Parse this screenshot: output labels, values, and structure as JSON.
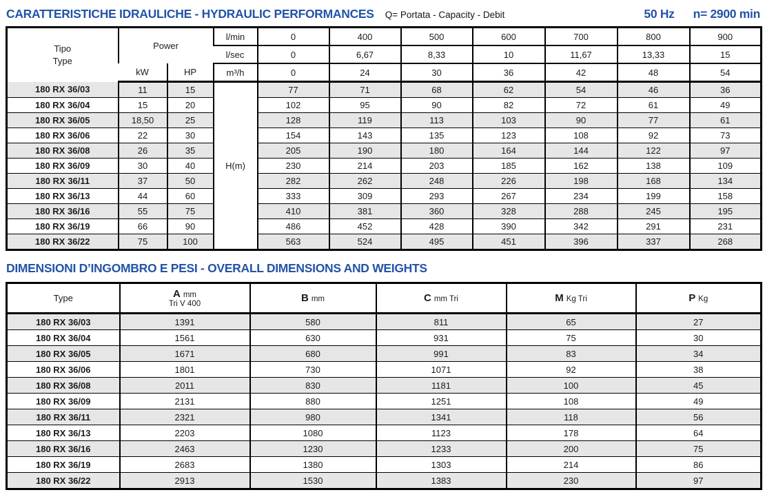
{
  "header": {
    "title": "CARATTERISTICHE IDRAULICHE - HYDRAULIC PERFORMANCES",
    "flow_note": "Q= Portata - Capacity - Debit",
    "frequency": "50 Hz",
    "speed": "n= 2900 min"
  },
  "hydraulic_table": {
    "col_tipo": "Tipo",
    "col_type": "Type",
    "col_power": "Power",
    "col_kw": "kW",
    "col_hp": "HP",
    "head_unit": "H(m)",
    "flow_header_rows": [
      {
        "unit": "l/min",
        "values": [
          "0",
          "400",
          "500",
          "600",
          "700",
          "800",
          "900"
        ]
      },
      {
        "unit": "l/sec",
        "values": [
          "0",
          "6,67",
          "8,33",
          "10",
          "11,67",
          "13,33",
          "15"
        ]
      },
      {
        "unit": "m³/h",
        "values": [
          "0",
          "24",
          "30",
          "36",
          "42",
          "48",
          "54"
        ]
      }
    ],
    "rows": [
      {
        "type": "180 RX 36/03",
        "kw": "11",
        "hp": "15",
        "h": [
          "77",
          "71",
          "68",
          "62",
          "54",
          "46",
          "36"
        ]
      },
      {
        "type": "180 RX 36/04",
        "kw": "15",
        "hp": "20",
        "h": [
          "102",
          "95",
          "90",
          "82",
          "72",
          "61",
          "49"
        ]
      },
      {
        "type": "180 RX 36/05",
        "kw": "18,50",
        "hp": "25",
        "h": [
          "128",
          "119",
          "113",
          "103",
          "90",
          "77",
          "61"
        ]
      },
      {
        "type": "180 RX 36/06",
        "kw": "22",
        "hp": "30",
        "h": [
          "154",
          "143",
          "135",
          "123",
          "108",
          "92",
          "73"
        ]
      },
      {
        "type": "180 RX 36/08",
        "kw": "26",
        "hp": "35",
        "h": [
          "205",
          "190",
          "180",
          "164",
          "144",
          "122",
          "97"
        ]
      },
      {
        "type": "180 RX 36/09",
        "kw": "30",
        "hp": "40",
        "h": [
          "230",
          "214",
          "203",
          "185",
          "162",
          "138",
          "109"
        ]
      },
      {
        "type": "180 RX 36/11",
        "kw": "37",
        "hp": "50",
        "h": [
          "282",
          "262",
          "248",
          "226",
          "198",
          "168",
          "134"
        ]
      },
      {
        "type": "180 RX 36/13",
        "kw": "44",
        "hp": "60",
        "h": [
          "333",
          "309",
          "293",
          "267",
          "234",
          "199",
          "158"
        ]
      },
      {
        "type": "180 RX 36/16",
        "kw": "55",
        "hp": "75",
        "h": [
          "410",
          "381",
          "360",
          "328",
          "288",
          "245",
          "195"
        ]
      },
      {
        "type": "180 RX 36/19",
        "kw": "66",
        "hp": "90",
        "h": [
          "486",
          "452",
          "428",
          "390",
          "342",
          "291",
          "231"
        ]
      },
      {
        "type": "180 RX 36/22",
        "kw": "75",
        "hp": "100",
        "h": [
          "563",
          "524",
          "495",
          "451",
          "396",
          "337",
          "268"
        ]
      }
    ]
  },
  "dimensions": {
    "title": "DIMENSIONI D’INGOMBRO E PESI - OVERALL DIMENSIONS AND WEIGHTS",
    "table": {
      "col_type": "Type",
      "cols": [
        {
          "letter": "A",
          "unit": "mm",
          "sub": "Tri V 400"
        },
        {
          "letter": "B",
          "unit": "mm",
          "sub": ""
        },
        {
          "letter": "C",
          "unit": "mm Tri",
          "sub": ""
        },
        {
          "letter": "M",
          "unit": "Kg Tri",
          "sub": ""
        },
        {
          "letter": "P",
          "unit": "Kg",
          "sub": ""
        }
      ],
      "rows": [
        {
          "type": "180 RX 36/03",
          "values": [
            "1391",
            "580",
            "811",
            "65",
            "27"
          ]
        },
        {
          "type": "180 RX 36/04",
          "values": [
            "1561",
            "630",
            "931",
            "75",
            "30"
          ]
        },
        {
          "type": "180 RX 36/05",
          "values": [
            "1671",
            "680",
            "991",
            "83",
            "34"
          ]
        },
        {
          "type": "180 RX 36/06",
          "values": [
            "1801",
            "730",
            "1071",
            "92",
            "38"
          ]
        },
        {
          "type": "180 RX 36/08",
          "values": [
            "2011",
            "830",
            "1181",
            "100",
            "45"
          ]
        },
        {
          "type": "180 RX 36/09",
          "values": [
            "2131",
            "880",
            "1251",
            "108",
            "49"
          ]
        },
        {
          "type": "180 RX 36/11",
          "values": [
            "2321",
            "980",
            "1341",
            "118",
            "56"
          ]
        },
        {
          "type": "180 RX 36/13",
          "values": [
            "2203",
            "1080",
            "1123",
            "178",
            "64"
          ]
        },
        {
          "type": "180 RX 36/16",
          "values": [
            "2463",
            "1230",
            "1233",
            "200",
            "75"
          ]
        },
        {
          "type": "180 RX 36/19",
          "values": [
            "2683",
            "1380",
            "1303",
            "214",
            "86"
          ]
        },
        {
          "type": "180 RX 36/22",
          "values": [
            "2913",
            "1530",
            "1383",
            "230",
            "97"
          ]
        }
      ]
    }
  },
  "colors": {
    "accent_blue": "#2353a8",
    "row_stripe": "#e6e6e6",
    "border": "#000000"
  }
}
